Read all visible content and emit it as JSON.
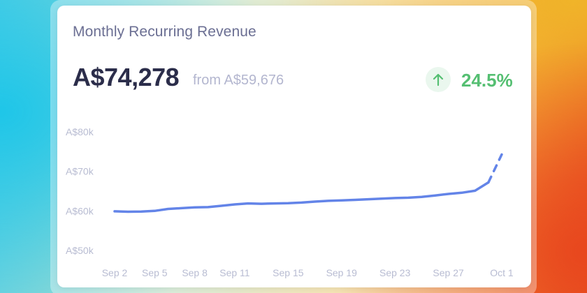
{
  "card": {
    "title": "Monthly Recurring Revenue",
    "value": "A$74,278",
    "from": "from A$59,676",
    "delta": "24.5%",
    "delta_icon": "arrow-up-icon",
    "colors": {
      "value": "#2b2d4a",
      "delta": "#55bf72",
      "line": "#6384e8",
      "ticks": "#b8bcd2"
    }
  },
  "chart_data": {
    "type": "line",
    "x_ticks": [
      "Sep 2",
      "Sep 5",
      "Sep 8",
      "Sep 11",
      "Sep 15",
      "Sep 19",
      "Sep 23",
      "Sep 27",
      "Oct 1"
    ],
    "x_tick_days": [
      2,
      5,
      8,
      11,
      15,
      19,
      23,
      27,
      31
    ],
    "y_ticks": [
      "A$80k",
      "A$70k",
      "A$60k",
      "A$50k"
    ],
    "y_tick_values": [
      80000,
      70000,
      60000,
      50000
    ],
    "ylim": [
      50000,
      80000
    ],
    "grid": false,
    "series": [
      {
        "x": [
          2,
          3,
          4,
          5,
          6,
          7,
          8,
          9,
          10,
          11,
          12,
          13,
          14,
          15,
          16,
          17,
          18,
          19,
          20,
          21,
          22,
          23,
          24,
          25,
          26,
          27,
          28,
          29,
          30
        ],
        "y": [
          59900,
          59800,
          59850,
          60000,
          60500,
          60700,
          60900,
          60950,
          61300,
          61650,
          61900,
          61800,
          61900,
          61950,
          62100,
          62350,
          62550,
          62650,
          62800,
          62950,
          63100,
          63250,
          63350,
          63550,
          63900,
          64300,
          64600,
          65100,
          67200
        ],
        "style": "solid"
      },
      {
        "x": [
          30,
          31
        ],
        "y": [
          67200,
          74278
        ],
        "style": "dashed"
      }
    ]
  }
}
